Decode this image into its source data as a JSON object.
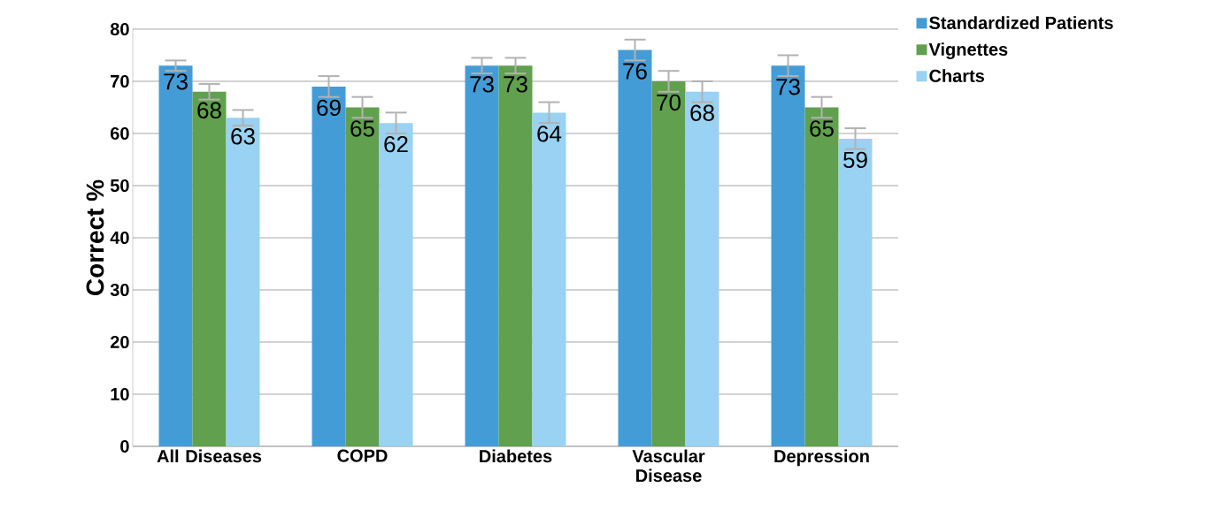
{
  "chart_data": {
    "type": "bar",
    "ylabel": "Correct %",
    "categories": [
      "All Diseases",
      "COPD",
      "Diabetes",
      "Vascular Disease",
      "Depression"
    ],
    "series": [
      {
        "name": "Standardized Patients",
        "color": "#449cd6",
        "values": [
          73,
          69,
          73,
          76,
          73
        ],
        "errors": [
          1,
          2,
          1.5,
          2,
          2
        ]
      },
      {
        "name": "Vignettes",
        "color": "#61a04e",
        "values": [
          68,
          65,
          73,
          70,
          65
        ],
        "errors": [
          1.5,
          2,
          1.5,
          2,
          2
        ]
      },
      {
        "name": "Charts",
        "color": "#99d2f2",
        "values": [
          63,
          62,
          64,
          68,
          59
        ],
        "errors": [
          1.5,
          2,
          2,
          2,
          2
        ]
      }
    ],
    "ylim": [
      0,
      80
    ],
    "yticks": [
      0,
      10,
      20,
      30,
      40,
      50,
      60,
      70,
      80
    ],
    "grid": "y",
    "legend": "top right",
    "data_labels": true
  }
}
